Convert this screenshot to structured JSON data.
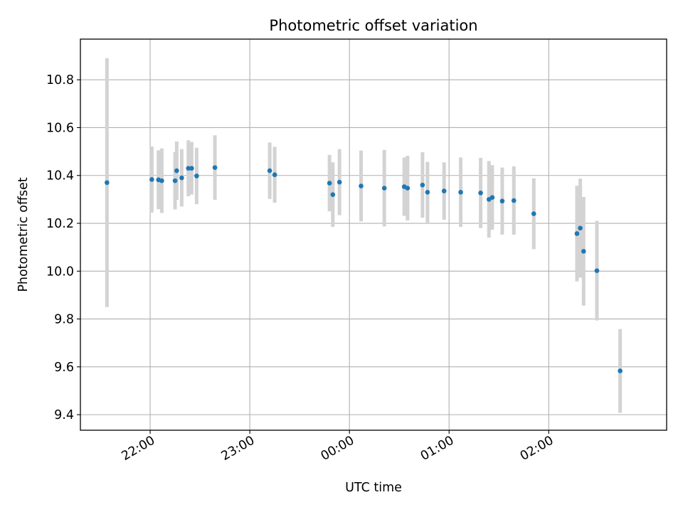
{
  "chart_data": {
    "type": "scatter",
    "title": "Photometric offset variation",
    "xlabel": "UTC time",
    "ylabel": "Photometric offset",
    "x_unit": "UTC time (HH:MM), night spanning midnight",
    "xlim": [
      "21:18",
      "03:11"
    ],
    "ylim": [
      9.335,
      10.97
    ],
    "xticks": [
      "22:00",
      "23:00",
      "00:00",
      "01:00",
      "02:00"
    ],
    "yticks": [
      9.4,
      9.6,
      9.8,
      10.0,
      10.2,
      10.4,
      10.6,
      10.8
    ],
    "ytick_labels": [
      "9.4",
      "9.6",
      "9.8",
      "10.0",
      "10.2",
      "10.4",
      "10.6",
      "10.8"
    ],
    "grid": true,
    "colors": {
      "point": "#1f77b4",
      "errorbar": "#d3d3d3",
      "grid": "#b0b0b0"
    },
    "points": [
      {
        "x": "21:34",
        "y": 10.37,
        "err": 0.52
      },
      {
        "x": "22:01",
        "y": 10.383,
        "err": 0.138
      },
      {
        "x": "22:05",
        "y": 10.382,
        "err": 0.123
      },
      {
        "x": "22:07",
        "y": 10.378,
        "err": 0.135
      },
      {
        "x": "22:15",
        "y": 10.378,
        "err": 0.12
      },
      {
        "x": "22:16",
        "y": 10.42,
        "err": 0.122
      },
      {
        "x": "22:19",
        "y": 10.39,
        "err": 0.12
      },
      {
        "x": "22:23",
        "y": 10.43,
        "err": 0.117
      },
      {
        "x": "22:25",
        "y": 10.43,
        "err": 0.11
      },
      {
        "x": "22:28",
        "y": 10.398,
        "err": 0.118
      },
      {
        "x": "22:39",
        "y": 10.433,
        "err": 0.135
      },
      {
        "x": "23:12",
        "y": 10.42,
        "err": 0.118
      },
      {
        "x": "23:15",
        "y": 10.403,
        "err": 0.117
      },
      {
        "x": "23:48",
        "y": 10.368,
        "err": 0.118
      },
      {
        "x": "23:50",
        "y": 10.32,
        "err": 0.135
      },
      {
        "x": "23:54",
        "y": 10.372,
        "err": 0.138
      },
      {
        "x": "00:07",
        "y": 10.356,
        "err": 0.148
      },
      {
        "x": "00:21",
        "y": 10.347,
        "err": 0.16
      },
      {
        "x": "00:33",
        "y": 10.353,
        "err": 0.122
      },
      {
        "x": "00:35",
        "y": 10.347,
        "err": 0.135
      },
      {
        "x": "00:44",
        "y": 10.36,
        "err": 0.137
      },
      {
        "x": "00:47",
        "y": 10.33,
        "err": 0.127
      },
      {
        "x": "00:57",
        "y": 10.335,
        "err": 0.12
      },
      {
        "x": "01:07",
        "y": 10.33,
        "err": 0.145
      },
      {
        "x": "01:19",
        "y": 10.327,
        "err": 0.147
      },
      {
        "x": "01:24",
        "y": 10.3,
        "err": 0.16
      },
      {
        "x": "01:26",
        "y": 10.308,
        "err": 0.135
      },
      {
        "x": "01:32",
        "y": 10.293,
        "err": 0.14
      },
      {
        "x": "01:39",
        "y": 10.295,
        "err": 0.143
      },
      {
        "x": "01:51",
        "y": 10.24,
        "err": 0.148
      },
      {
        "x": "02:17",
        "y": 10.157,
        "err": 0.2
      },
      {
        "x": "02:19",
        "y": 10.18,
        "err": 0.207
      },
      {
        "x": "02:21",
        "y": 10.083,
        "err": 0.227
      },
      {
        "x": "02:29",
        "y": 10.002,
        "err": 0.208
      },
      {
        "x": "02:43",
        "y": 9.583,
        "err": 0.175
      }
    ]
  }
}
